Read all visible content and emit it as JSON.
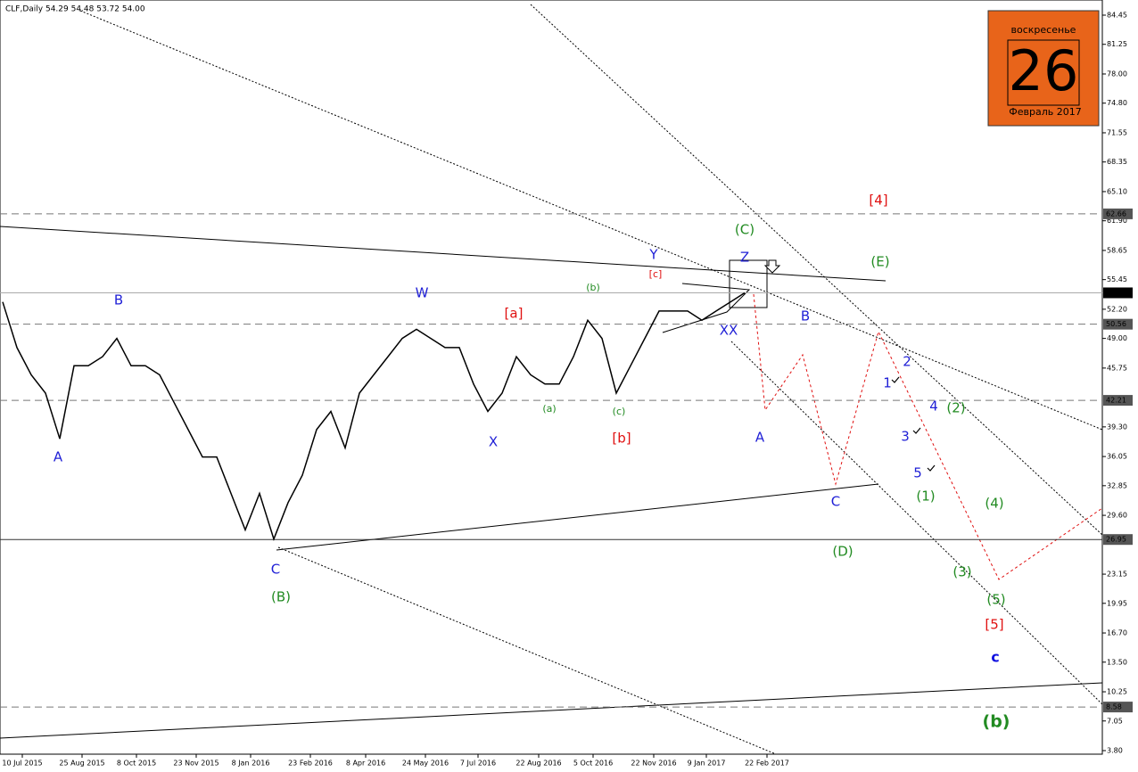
{
  "chart_data": {
    "type": "line",
    "header": "CLF,Daily  54.29 54.48 53.72 54.00",
    "color": "#000000",
    "values": [
      53,
      48,
      45,
      43,
      38,
      46,
      46,
      47,
      49,
      46,
      46,
      45,
      42,
      39,
      36,
      36,
      32,
      28,
      32,
      27,
      31,
      34,
      39,
      41,
      37,
      43,
      45,
      47,
      49,
      50,
      49,
      48,
      48,
      44,
      41,
      43,
      47,
      45,
      44,
      44,
      47,
      51,
      49,
      43,
      46,
      49,
      52,
      52,
      52,
      51,
      52,
      53,
      54
    ],
    "x_labels": [
      "10 Jul 2015",
      "25 Aug 2015",
      "8 Oct 2015",
      "23 Nov 2015",
      "8 Jan 2016",
      "23 Feb 2016",
      "8 Apr 2016",
      "24 May 2016",
      "7 Jul 2016",
      "22 Aug 2016",
      "5 Oct 2016",
      "22 Nov 2016",
      "9 Jan 2017",
      "22 Feb 2017"
    ],
    "ylim": [
      3.8,
      84.45
    ],
    "yticks": [
      84.45,
      81.25,
      {
        "value": 78,
        "label": "78.00"
      },
      {
        "value": 74.8,
        "label": "74.80"
      },
      71.55,
      68.35,
      {
        "value": 65.1,
        "label": "65.10"
      },
      {
        "value": 61.9,
        "label": "61.90"
      },
      58.65,
      55.45,
      {
        "value": 52.2,
        "label": "52.20"
      },
      {
        "value": 49,
        "label": "49.00"
      },
      45.75,
      {
        "value": 39.3,
        "label": "39.30"
      },
      36.05,
      32.85,
      {
        "value": 29.6,
        "label": "29.60"
      },
      23.15,
      19.95,
      {
        "value": 16.7,
        "label": "16.70"
      },
      {
        "value": 13.5,
        "label": "13.50"
      },
      10.25,
      7.05,
      {
        "value": 3.8,
        "label": "3.80"
      }
    ],
    "levels": [
      62.66,
      {
        "value": 54,
        "label": "54.00"
      },
      50.56,
      42.21,
      26.95,
      8.58
    ],
    "annotations": [
      {
        "text": "A",
        "color": "#1f1fd6"
      },
      {
        "text": "B",
        "color": "#1f1fd6"
      },
      {
        "text": "C",
        "color": "#1f1fd6"
      },
      {
        "text": "(B)",
        "color": "#228b22"
      },
      {
        "text": "W",
        "color": "#1f1fd6"
      },
      {
        "text": "X",
        "color": "#1f1fd6"
      },
      {
        "text": "[a]",
        "color": "#e01010"
      },
      {
        "text": "(b)",
        "color": "#228b22"
      },
      {
        "text": "(a)",
        "color": "#228b22"
      },
      {
        "text": "(c)",
        "color": "#228b22"
      },
      {
        "text": "[b]",
        "color": "#e01010"
      },
      {
        "text": "[c]",
        "color": "#e01010"
      },
      {
        "text": "Y",
        "color": "#1f1fd6"
      },
      {
        "text": "Z",
        "color": "#1f1fd6"
      },
      {
        "text": "(C)",
        "color": "#228b22"
      },
      {
        "text": "XX",
        "color": "#1f1fd6"
      },
      {
        "text": "B",
        "color": "#1f1fd6"
      },
      {
        "text": "A",
        "color": "#1f1fd6"
      },
      {
        "text": "C",
        "color": "#1f1fd6"
      },
      {
        "text": "(D)",
        "color": "#228b22"
      },
      {
        "text": "[4]",
        "color": "#e01010"
      },
      {
        "text": "(E)",
        "color": "#228b22"
      },
      {
        "text": "2",
        "color": "#1f1fd6"
      },
      {
        "text": "1",
        "color": "#1f1fd6"
      },
      {
        "text": "4",
        "color": "#1f1fd6"
      },
      {
        "text": "(2)",
        "color": "#228b22"
      },
      {
        "text": "3",
        "color": "#1f1fd6"
      },
      {
        "text": "5",
        "color": "#1f1fd6"
      },
      {
        "text": "(1)",
        "color": "#228b22"
      },
      {
        "text": "(4)",
        "color": "#228b22"
      },
      {
        "text": "(3)",
        "color": "#228b22"
      },
      {
        "text": "(5)",
        "color": "#228b22"
      },
      {
        "text": "[5]",
        "color": "#e01010"
      },
      {
        "text": "c",
        "color": "#1010e0"
      },
      {
        "text": "(b)",
        "color": "#228b22"
      }
    ],
    "calendar": {
      "weekday": "воскресенье",
      "day": "26",
      "month": "Февраль 2017"
    }
  }
}
